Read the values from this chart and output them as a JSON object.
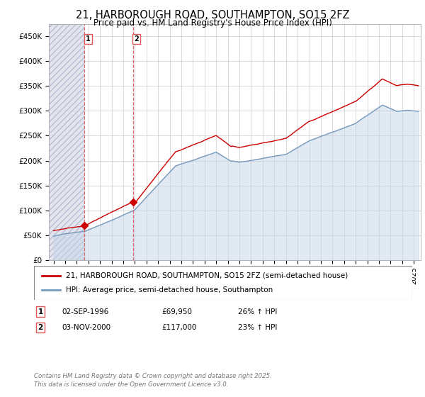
{
  "title": "21, HARBOROUGH ROAD, SOUTHAMPTON, SO15 2FZ",
  "subtitle": "Price paid vs. HM Land Registry's House Price Index (HPI)",
  "ylim": [
    0,
    475000
  ],
  "yticks": [
    0,
    50000,
    100000,
    150000,
    200000,
    250000,
    300000,
    350000,
    400000,
    450000
  ],
  "ytick_labels": [
    "£0",
    "£50K",
    "£100K",
    "£150K",
    "£200K",
    "£250K",
    "£300K",
    "£350K",
    "£400K",
    "£450K"
  ],
  "xlim_start": 1993.6,
  "xlim_end": 2025.6,
  "transaction1_date": 1996.67,
  "transaction1_price": 69950,
  "transaction2_date": 2000.84,
  "transaction2_price": 117000,
  "red_line_color": "#cc0000",
  "blue_line_color": "#7799bb",
  "blue_fill_color": "#c5d5e8",
  "dashed_line_color": "#dd5555",
  "grid_color": "#cccccc",
  "legend_label_red": "21, HARBOROUGH ROAD, SOUTHAMPTON, SO15 2FZ (semi-detached house)",
  "legend_label_blue": "HPI: Average price, semi-detached house, Southampton",
  "tx1_date_str": "02-SEP-1996",
  "tx1_price_str": "£69,950",
  "tx1_hpi_str": "26% ↑ HPI",
  "tx2_date_str": "03-NOV-2000",
  "tx2_price_str": "£117,000",
  "tx2_hpi_str": "23% ↑ HPI",
  "footnote": "Contains HM Land Registry data © Crown copyright and database right 2025.\nThis data is licensed under the Open Government Licence v3.0."
}
